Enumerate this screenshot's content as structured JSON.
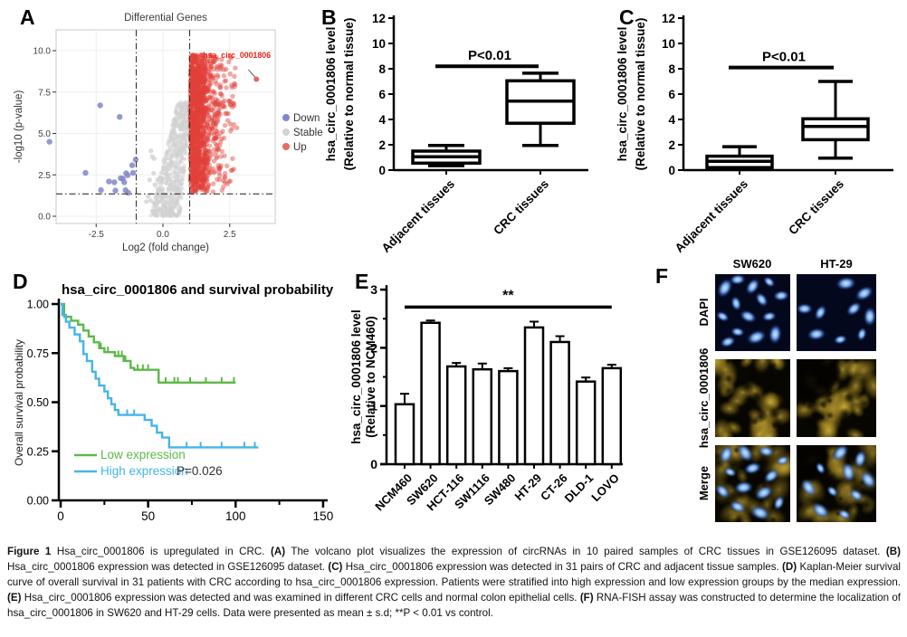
{
  "panels": {
    "a": "A",
    "b": "B",
    "c": "C",
    "d": "D",
    "e": "E",
    "f": "F"
  },
  "colors": {
    "down": "#8187c9",
    "stable": "#d2d2d2",
    "up": "#e2403a",
    "annotation": "#e8241a",
    "km_low": "#5cb947",
    "km_high": "#45b5e8",
    "axis": "#000000",
    "volcano_text": "#404040",
    "dapi_bg": "#04081c",
    "nucleus_core": "#dceaff",
    "nucleus_mid": "#6fa8f0",
    "fish_bg": "#070600",
    "fish_blob": "#d6b83e"
  },
  "chart_data": [
    {
      "id": "volcano",
      "type": "scatter",
      "title": "Differential Genes",
      "xlabel": "Log2 (fold change)",
      "ylabel": "-log10 (p-value)",
      "xlim": [
        -4.0,
        4.2
      ],
      "ylim": [
        -0.5,
        11.3
      ],
      "xticks": [
        -2.5,
        0,
        2.5
      ],
      "xtick_labels": [
        "-2.5",
        "0.0",
        "2.5"
      ],
      "yticks": [
        0,
        2.5,
        5,
        7.5,
        10
      ],
      "ytick_labels": [
        "0.0",
        "2.5",
        "5.0",
        "7.5",
        "10.0"
      ],
      "thresholds": {
        "vlines": [
          -1,
          1
        ],
        "hline": 1.35
      },
      "legend": {
        "items": [
          {
            "label": "Down",
            "color": "#8187c9"
          },
          {
            "label": "Stable",
            "color": "#d2d2d2"
          },
          {
            "label": "Up",
            "color": "#e56a62"
          }
        ]
      },
      "annotation": {
        "text": "hsa_circ_0001806",
        "text_x": 1.5,
        "text_y": 9.55,
        "line_from": [
          3.2,
          8.85
        ],
        "line_to": [
          3.45,
          8.4
        ],
        "point": [
          3.5,
          8.28
        ],
        "color": "#e8241a"
      },
      "down_points": [
        [
          -4.25,
          4.5
        ],
        [
          -2.35,
          6.7
        ],
        [
          -1.62,
          6.0
        ],
        [
          -2.9,
          2.62
        ],
        [
          -1.15,
          3.08
        ],
        [
          -1.02,
          3.42
        ],
        [
          -2.02,
          2.1
        ],
        [
          -1.82,
          2.05
        ],
        [
          -1.58,
          2.3
        ],
        [
          -1.5,
          2.28
        ],
        [
          -1.38,
          2.6
        ],
        [
          -1.32,
          2.48
        ],
        [
          -2.32,
          1.58
        ],
        [
          -1.78,
          1.55
        ],
        [
          -1.4,
          1.58
        ],
        [
          -1.3,
          1.42
        ],
        [
          -1.12,
          2.62
        ],
        [
          -1.45,
          2.05
        ]
      ],
      "stable_outliers": [
        [
          -0.45,
          3.95
        ],
        [
          -0.4,
          3.6
        ],
        [
          -0.33,
          3.48
        ],
        [
          -0.5,
          2.2
        ],
        [
          -0.3,
          1.9
        ],
        [
          -0.55,
          1.2
        ],
        [
          -0.45,
          0.95
        ],
        [
          -0.27,
          1.12
        ],
        [
          -0.62,
          0.88
        ],
        [
          -0.18,
          1.5
        ],
        [
          -0.35,
          2.6
        ],
        [
          -0.2,
          2.2
        ]
      ],
      "generator": {
        "seed": 1234,
        "stable_n": 780,
        "up_n": 1050,
        "up_core_n": 350,
        "stable_shape": {
          "y_max": 6.9,
          "center_base": 0.08,
          "center_slope": 0.72,
          "half_base": 0.56,
          "half_slope": 0.3
        },
        "up_shape": {
          "x_min": 1.02,
          "x_scale": 0.5,
          "x_max": 4.5,
          "y_min": 1.42,
          "y_max": 9.75
        }
      }
    },
    {
      "id": "box_gse",
      "type": "box",
      "ylabel_lines": [
        "hsa_circ_0001806 level",
        "(Relative to normal tissue)"
      ],
      "categories": [
        "Adjacent tissues",
        "CRC tissues"
      ],
      "ylim": [
        0,
        12
      ],
      "yticks": [
        0,
        2,
        4,
        6,
        8,
        10,
        12
      ],
      "ytick_labels": [
        "0",
        "2",
        "4",
        "6",
        "8",
        "10",
        "12"
      ],
      "boxes": [
        {
          "whisker_low": 0.35,
          "q1": 0.55,
          "median": 1.05,
          "q3": 1.5,
          "whisker_high": 1.95
        },
        {
          "whisker_low": 1.95,
          "q1": 3.7,
          "median": 5.45,
          "q3": 7.05,
          "whisker_high": 7.65
        }
      ],
      "significance": {
        "label": "P<0.01",
        "bar_y": 8.2
      }
    },
    {
      "id": "box_patients",
      "type": "box",
      "ylabel_lines": [
        "hsa_circ_0001806 level",
        "(Relative to normal tissue)"
      ],
      "categories": [
        "Adjacent tissues",
        "CRC tissues"
      ],
      "ylim": [
        0,
        12
      ],
      "yticks": [
        0,
        2,
        4,
        6,
        8,
        10,
        12
      ],
      "ytick_labels": [
        "0",
        "2",
        "4",
        "6",
        "8",
        "10",
        "12"
      ],
      "boxes": [
        {
          "whisker_low": 0.1,
          "q1": 0.2,
          "median": 0.7,
          "q3": 1.1,
          "whisker_high": 1.85
        },
        {
          "whisker_low": 0.95,
          "q1": 2.4,
          "median": 3.45,
          "q3": 4.05,
          "whisker_high": 7.0
        }
      ],
      "significance": {
        "label": "P<0.01",
        "bar_y": 8.1
      }
    },
    {
      "id": "survival",
      "type": "line",
      "title": "hsa_circ_0001806 and survival probability",
      "ylabel": "Overall survival probability",
      "ylim": [
        0,
        1
      ],
      "yticks": [
        0,
        0.25,
        0.5,
        0.75,
        1.0
      ],
      "ytick_labels": [
        "0.00",
        "0.25",
        "0.50",
        "0.75",
        "1.00"
      ],
      "xlim": [
        0,
        150
      ],
      "xticks": [
        0,
        50,
        100,
        150
      ],
      "xtick_labels": [
        "0",
        "50",
        "100",
        "150"
      ],
      "xminor": [
        25,
        75,
        125
      ],
      "p_value": "P=0.026",
      "series": [
        {
          "name": "Low expression",
          "color": "#5cb947",
          "end": 100,
          "drops": [
            [
              2,
              0.935
            ],
            [
              6,
              0.915
            ],
            [
              10,
              0.895
            ],
            [
              13,
              0.865
            ],
            [
              16,
              0.835
            ],
            [
              19,
              0.805
            ],
            [
              22,
              0.775
            ],
            [
              25,
              0.755
            ],
            [
              31,
              0.735
            ],
            [
              36,
              0.71
            ],
            [
              40,
              0.675
            ],
            [
              42,
              0.665
            ],
            [
              56,
              0.6
            ]
          ],
          "censors": [
            23,
            27,
            33,
            35,
            37,
            44,
            47,
            50,
            60,
            65,
            67,
            74,
            83,
            92,
            99
          ]
        },
        {
          "name": "High expression",
          "color": "#45b5e8",
          "end": 113,
          "drops": [
            [
              1,
              0.945
            ],
            [
              3,
              0.91
            ],
            [
              5,
              0.88
            ],
            [
              8,
              0.845
            ],
            [
              11,
              0.81
            ],
            [
              13,
              0.745
            ],
            [
              15,
              0.71
            ],
            [
              18,
              0.655
            ],
            [
              20,
              0.62
            ],
            [
              22,
              0.585
            ],
            [
              25,
              0.555
            ],
            [
              27,
              0.52
            ],
            [
              29,
              0.49
            ],
            [
              31,
              0.46
            ],
            [
              33,
              0.435
            ],
            [
              48,
              0.41
            ],
            [
              52,
              0.38
            ],
            [
              55,
              0.345
            ],
            [
              58,
              0.32
            ],
            [
              62,
              0.27
            ]
          ],
          "censors": [
            38,
            42,
            72,
            80,
            92,
            105,
            111
          ]
        }
      ]
    },
    {
      "id": "cell_lines",
      "type": "bar",
      "ylabel_lines": [
        "hsa_circ_0001806 level",
        "(Relative to NCM460)"
      ],
      "categories": [
        "NCM460",
        "SW620",
        "HCT-116",
        "SW1116",
        "SW480",
        "HT-29",
        "CT-26",
        "DLD-1",
        "LOVO"
      ],
      "values": [
        1.03,
        2.43,
        1.68,
        1.63,
        1.6,
        2.35,
        2.1,
        1.42,
        1.65
      ],
      "errors": [
        0.18,
        0.04,
        0.06,
        0.1,
        0.05,
        0.1,
        0.1,
        0.07,
        0.06
      ],
      "ylim": [
        0,
        3
      ],
      "yticks": [
        0,
        1,
        2,
        3
      ],
      "ytick_labels": [
        "0",
        "1",
        "2",
        "3"
      ],
      "yminor": [
        0.5,
        1.5,
        2.5
      ],
      "significance": {
        "label": "**",
        "bar_y": 2.7,
        "from": 0,
        "to": 8
      }
    }
  ],
  "panel_f": {
    "col_labels": [
      "SW620",
      "HT-29"
    ],
    "row_labels": [
      "DAPI",
      "hsa_circ_0001806",
      "Merge"
    ],
    "dapi_nuclei": [
      [
        [
          0.13,
          0.18
        ],
        [
          0.3,
          0.07
        ],
        [
          0.5,
          0.16
        ],
        [
          0.72,
          0.1
        ],
        [
          0.88,
          0.28
        ],
        [
          0.62,
          0.33
        ],
        [
          0.28,
          0.38
        ],
        [
          0.1,
          0.55
        ],
        [
          0.44,
          0.55
        ],
        [
          0.72,
          0.55
        ],
        [
          0.3,
          0.75
        ],
        [
          0.55,
          0.82
        ],
        [
          0.17,
          0.88
        ],
        [
          0.8,
          0.78
        ]
      ],
      [
        [
          0.62,
          0.12
        ],
        [
          0.85,
          0.25
        ],
        [
          0.1,
          0.45
        ],
        [
          0.3,
          0.5
        ],
        [
          0.72,
          0.45
        ],
        [
          0.92,
          0.55
        ],
        [
          0.25,
          0.78
        ],
        [
          0.55,
          0.85
        ],
        [
          0.82,
          0.78
        ]
      ]
    ],
    "merge_nuclei": [
      [
        [
          0.15,
          0.12
        ],
        [
          0.4,
          0.1
        ],
        [
          0.68,
          0.08
        ],
        [
          0.9,
          0.2
        ],
        [
          0.2,
          0.35
        ],
        [
          0.5,
          0.3
        ],
        [
          0.75,
          0.4
        ],
        [
          0.1,
          0.6
        ],
        [
          0.38,
          0.55
        ],
        [
          0.65,
          0.62
        ],
        [
          0.3,
          0.8
        ],
        [
          0.6,
          0.88
        ],
        [
          0.85,
          0.75
        ]
      ],
      [
        [
          0.55,
          0.1
        ],
        [
          0.8,
          0.18
        ],
        [
          0.3,
          0.3
        ],
        [
          0.65,
          0.35
        ],
        [
          0.9,
          0.45
        ],
        [
          0.15,
          0.55
        ],
        [
          0.45,
          0.6
        ],
        [
          0.75,
          0.65
        ],
        [
          0.3,
          0.85
        ],
        [
          0.6,
          0.9
        ]
      ]
    ],
    "fish_seeds": [
      7,
      11
    ],
    "merge_seeds": [
      5,
      9
    ],
    "fish_voids": [
      [],
      [
        [
          0.18,
          0.18,
          0.38
        ]
      ]
    ],
    "merge_voids": [
      [],
      [
        [
          0.12,
          0.18,
          0.3
        ]
      ]
    ]
  },
  "caption": {
    "segments": [
      {
        "b": "Figure 1"
      },
      {
        "t": " Hsa_circ_0001806 is upregulated in CRC. "
      },
      {
        "b": "(A)"
      },
      {
        "t": " The volcano plot visualizes the expression of circRNAs in 10 paired samples of CRC tissues in GSE126095 dataset. "
      },
      {
        "b": "(B)"
      },
      {
        "t": " Hsa_circ_0001806 expression was detected in GSE126095 dataset. "
      },
      {
        "b": "(C)"
      },
      {
        "t": " Hsa_circ_0001806 expression was detected in 31 pairs of CRC and adjacent tissue samples. "
      },
      {
        "b": "(D)"
      },
      {
        "t": " Kaplan-Meier survival curve of overall survival in 31 patients with CRC according to hsa_circ_0001806 expression. Patients were stratified into high expression and low expression groups by the median expression. "
      },
      {
        "b": "(E)"
      },
      {
        "t": " Hsa_circ_0001806 expression was detected and was examined in different CRC cells and normal colon epithelial cells. "
      },
      {
        "b": "(F)"
      },
      {
        "t": " RNA-FISH assay was constructed to determine the localization of hsa_circ_0001806 in SW620 and HT-29 cells. Data were presented as mean ± s.d; **P < 0.01 vs control."
      }
    ]
  }
}
